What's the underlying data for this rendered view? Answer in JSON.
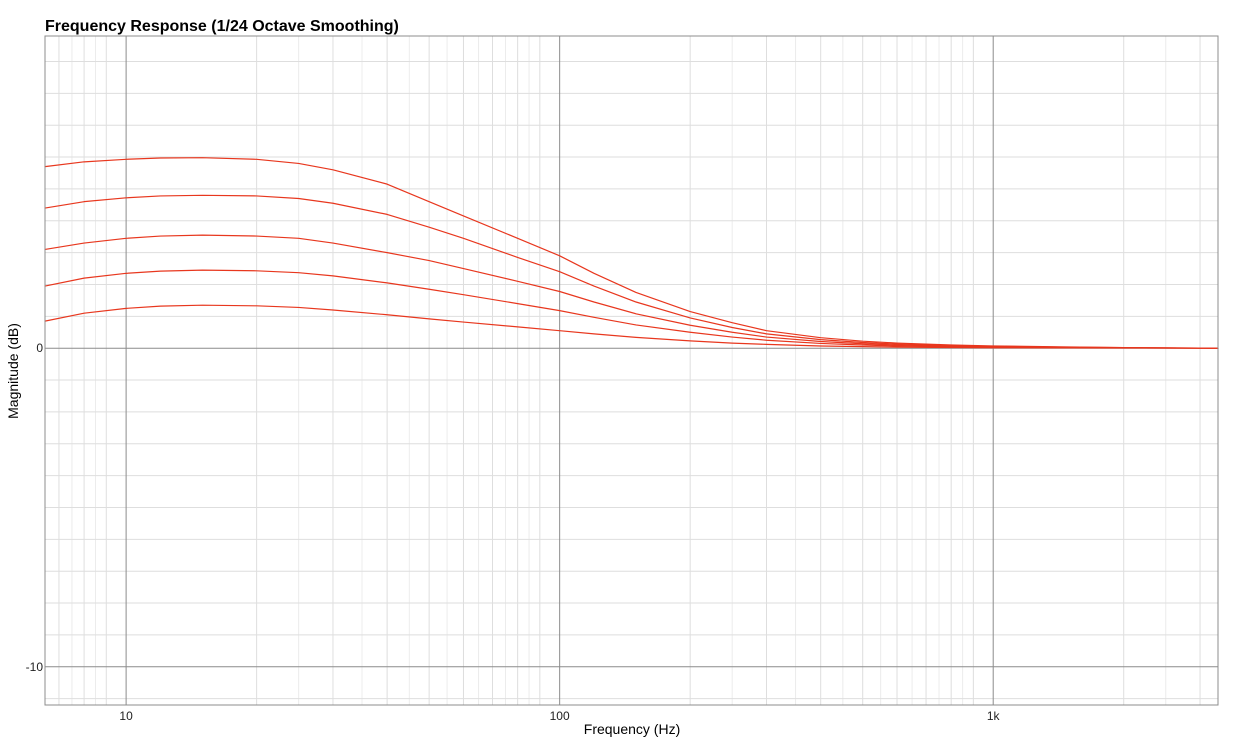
{
  "chart_data": {
    "type": "line",
    "title": "Frequency Response (1/24 Octave Smoothing)",
    "xlabel": "Frequency (Hz)",
    "ylabel": "Magnitude (dB)",
    "x_scale": "log",
    "xlim": [
      6.5,
      3300
    ],
    "ylim": [
      -11.2,
      9.8
    ],
    "x_ticks": [
      {
        "value": 10,
        "label": "10"
      },
      {
        "value": 100,
        "label": "100"
      },
      {
        "value": 1000,
        "label": "1k"
      }
    ],
    "y_ticks": [
      {
        "value": 0,
        "label": "0"
      },
      {
        "value": -10,
        "label": "-10"
      }
    ],
    "grid": true,
    "legend": "none",
    "line_color": "#e8371e",
    "series": [
      {
        "x": [
          6.5,
          8,
          10,
          12,
          15,
          20,
          25,
          30,
          40,
          50,
          60,
          80,
          100,
          120,
          150,
          200,
          250,
          300,
          400,
          500,
          600,
          800,
          1000,
          1500,
          2000,
          3300
        ],
        "values": [
          5.7,
          5.85,
          5.93,
          5.97,
          5.98,
          5.93,
          5.8,
          5.6,
          5.15,
          4.6,
          4.15,
          3.45,
          2.9,
          2.35,
          1.75,
          1.15,
          0.8,
          0.55,
          0.33,
          0.22,
          0.16,
          0.1,
          0.07,
          0.04,
          0.02,
          0.0
        ]
      },
      {
        "x": [
          6.5,
          8,
          10,
          12,
          15,
          20,
          25,
          30,
          40,
          50,
          60,
          80,
          100,
          120,
          150,
          200,
          250,
          300,
          400,
          500,
          600,
          800,
          1000,
          1500,
          2000,
          3300
        ],
        "values": [
          4.4,
          4.6,
          4.72,
          4.78,
          4.8,
          4.78,
          4.7,
          4.55,
          4.2,
          3.8,
          3.45,
          2.85,
          2.4,
          1.95,
          1.45,
          0.95,
          0.65,
          0.45,
          0.27,
          0.18,
          0.13,
          0.08,
          0.06,
          0.03,
          0.02,
          0.0
        ]
      },
      {
        "x": [
          6.5,
          8,
          10,
          12,
          15,
          20,
          25,
          30,
          40,
          50,
          60,
          80,
          100,
          120,
          150,
          200,
          250,
          300,
          400,
          500,
          600,
          800,
          1000,
          1500,
          2000,
          3300
        ],
        "values": [
          3.1,
          3.3,
          3.45,
          3.52,
          3.55,
          3.52,
          3.45,
          3.3,
          3.0,
          2.75,
          2.5,
          2.1,
          1.78,
          1.45,
          1.08,
          0.72,
          0.5,
          0.35,
          0.21,
          0.14,
          0.1,
          0.06,
          0.04,
          0.02,
          0.01,
          0.0
        ]
      },
      {
        "x": [
          6.5,
          8,
          10,
          12,
          15,
          20,
          25,
          30,
          40,
          50,
          60,
          80,
          100,
          120,
          150,
          200,
          250,
          300,
          400,
          500,
          600,
          800,
          1000,
          1500,
          2000,
          3300
        ],
        "values": [
          1.95,
          2.2,
          2.35,
          2.42,
          2.45,
          2.43,
          2.37,
          2.27,
          2.05,
          1.85,
          1.68,
          1.4,
          1.18,
          0.97,
          0.73,
          0.5,
          0.35,
          0.25,
          0.15,
          0.1,
          0.07,
          0.04,
          0.03,
          0.015,
          0.01,
          0.0
        ]
      },
      {
        "x": [
          6.5,
          8,
          10,
          12,
          15,
          20,
          25,
          30,
          40,
          50,
          60,
          80,
          100,
          120,
          150,
          200,
          250,
          300,
          400,
          500,
          600,
          800,
          1000,
          1500,
          2000,
          3300
        ],
        "values": [
          0.85,
          1.1,
          1.25,
          1.32,
          1.35,
          1.33,
          1.28,
          1.2,
          1.05,
          0.92,
          0.82,
          0.67,
          0.55,
          0.45,
          0.34,
          0.23,
          0.16,
          0.12,
          0.07,
          0.05,
          0.035,
          0.02,
          0.015,
          0.008,
          0.005,
          0.0
        ]
      }
    ]
  }
}
